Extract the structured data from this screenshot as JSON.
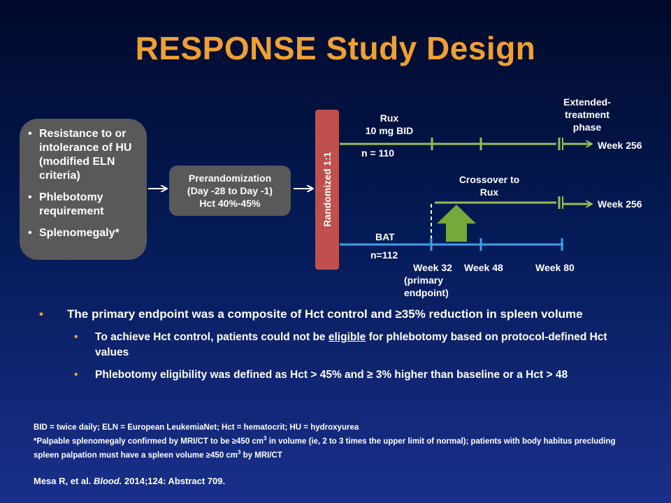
{
  "title": "RESPONSE Study Design",
  "colors": {
    "title": "#f0a030",
    "rux_line": "#9bbb59",
    "bat_line": "#3f9fe8",
    "randomized_box": "#c0504d",
    "box_fill": "#595959"
  },
  "criteria": [
    "Resistance to or intolerance of HU (modified ELN criteria)",
    "Phlebotomy requirement",
    "Splenomegaly*"
  ],
  "prerandomization": {
    "line1": "Prerandomization",
    "line2": "(Day -28 to Day -1)",
    "line3": "Hct 40%-45%"
  },
  "randomized_label": "Randomized 1:1",
  "rux_arm": {
    "name_line1": "Rux",
    "name_line2": "10 mg BID",
    "n": "n = 110",
    "end_label": "Week 256"
  },
  "extended_phase": {
    "line1": "Extended-",
    "line2": "treatment",
    "line3": "phase"
  },
  "crossover": {
    "line1": "Crossover to",
    "line2": "Rux",
    "end_label": "Week 256"
  },
  "bat_arm": {
    "name": "BAT",
    "n": "n=112"
  },
  "timepoints": {
    "week32_line1": "Week 32",
    "week32_line2": "(primary",
    "week32_line3": "endpoint)",
    "week48": "Week 48",
    "week80": "Week 80"
  },
  "bullets": {
    "main": "The primary endpoint was a composite of Hct control and ≥35% reduction in spleen volume",
    "sub1_before": "To achieve Hct control, patients could not be ",
    "sub1_underlined": "eligible",
    "sub1_after": " for phlebotomy based on protocol-defined Hct values",
    "sub2": "Phlebotomy eligibility was defined as Hct > 45% and ≥ 3% higher than baseline or a Hct > 48"
  },
  "footnotes": {
    "abbreviations": "BID = twice daily; ELN = European LeukemiaNet; Hct = hematocrit; HU = hydroxyurea",
    "splenomegaly_a": "*Palpable splenomegaly confirmed by MRI/CT to be ≥450 cm",
    "sup": "3",
    "splenomegaly_b": " in volume (ie, 2 to 3 times the upper limit of normal); patients with body habitus precluding spleen palpation must have a spleen volume ≥450 cm",
    "splenomegaly_c": " by MRI/CT"
  },
  "citation": {
    "authors": "Mesa R, et al. ",
    "journal": "Blood.",
    "details": " 2014;124: Abstract 709."
  }
}
